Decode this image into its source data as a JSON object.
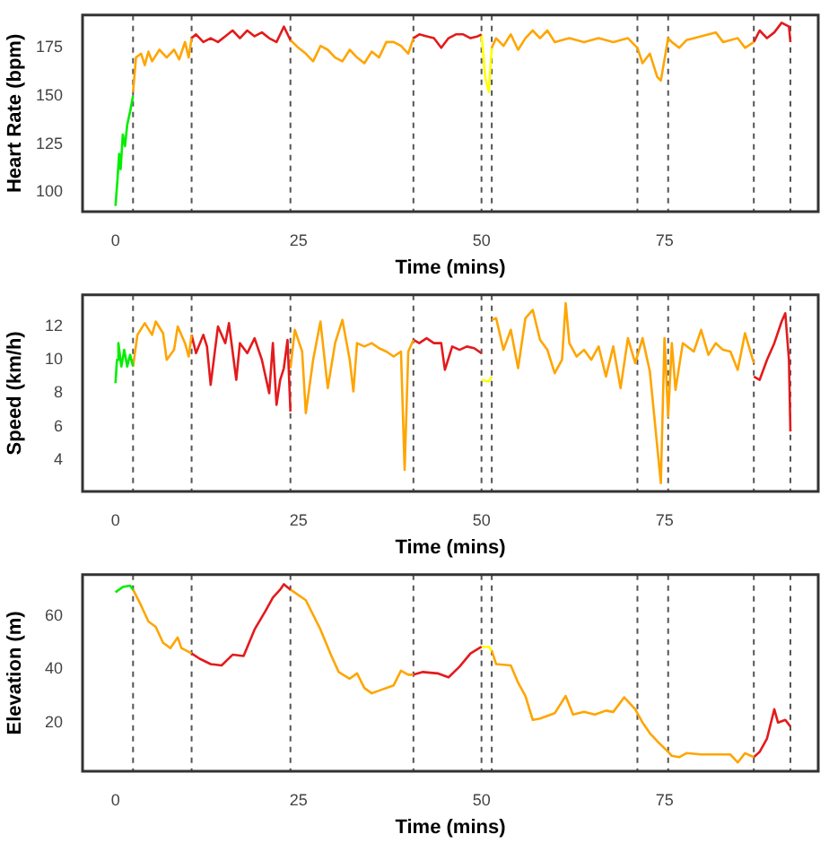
{
  "chart_data": [
    {
      "type": "line",
      "xlabel": "Time (mins)",
      "ylabel": "Heart Rate (bpm)",
      "xlim": [
        -4.5,
        96
      ],
      "xticks": [
        0,
        25,
        50,
        75
      ],
      "ylim": [
        90,
        192
      ],
      "yticks": [
        100,
        125,
        150,
        175
      ],
      "grid": false,
      "legend": false,
      "series": [
        {
          "color": "#00ee00",
          "x": [
            0,
            0.3,
            0.5,
            0.7,
            1,
            1.3,
            1.6,
            2,
            2.4
          ],
          "values": [
            93,
            108,
            120,
            112,
            130,
            124,
            135,
            142,
            150
          ]
        },
        {
          "color": "#ffa500",
          "x": [
            2.4,
            2.8,
            3.5,
            4,
            4.5,
            5,
            6,
            7,
            8,
            8.7,
            9.5,
            10,
            10.4
          ],
          "values": [
            152,
            170,
            172,
            166,
            173,
            168,
            174,
            170,
            174,
            169,
            178,
            170,
            180
          ]
        },
        {
          "color": "#e41a1c",
          "x": [
            10.4,
            11,
            12,
            13,
            14,
            15,
            16,
            17,
            18,
            19,
            20,
            21,
            22,
            23,
            23.9
          ],
          "values": [
            180,
            182,
            178,
            180,
            178,
            181,
            184,
            180,
            184,
            181,
            183,
            180,
            178,
            186,
            179
          ]
        },
        {
          "color": "#ffa500",
          "x": [
            23.9,
            25,
            26,
            27,
            28,
            29,
            30,
            31,
            32,
            33,
            34,
            35,
            36,
            37,
            38,
            39,
            40,
            40.7
          ],
          "values": [
            179,
            175,
            172,
            168,
            176,
            174,
            170,
            168,
            174,
            170,
            167,
            173,
            170,
            178,
            178,
            176,
            172,
            180
          ]
        },
        {
          "color": "#e41a1c",
          "x": [
            40.7,
            41.5,
            42.5,
            43.5,
            44.5,
            45.5,
            46.5,
            47.5,
            48.5,
            49.5,
            50
          ],
          "values": [
            180,
            182,
            181,
            180,
            175,
            180,
            182,
            182,
            180,
            181,
            182
          ]
        },
        {
          "color": "#ffff00",
          "x": [
            50,
            50.5,
            51,
            51.4
          ],
          "values": [
            182,
            160,
            152,
            175
          ]
        },
        {
          "color": "#ffa500",
          "x": [
            51.4,
            52,
            53,
            54,
            55,
            56,
            57,
            58,
            59,
            60,
            62,
            64,
            66,
            68,
            70,
            71.3,
            72,
            73,
            74,
            74.5,
            75.5,
            76,
            77,
            78,
            80,
            82,
            83,
            85,
            86,
            87.2
          ],
          "values": [
            175,
            180,
            176,
            182,
            174,
            180,
            184,
            180,
            184,
            178,
            180,
            178,
            180,
            178,
            180,
            175,
            167,
            172,
            160,
            158,
            180,
            178,
            175,
            179,
            181,
            183,
            178,
            180,
            175,
            178
          ]
        },
        {
          "color": "#e41a1c",
          "x": [
            87.2,
            88,
            89,
            90,
            91,
            92,
            92.2
          ],
          "values": [
            178,
            184,
            180,
            183,
            188,
            186,
            178
          ]
        }
      ],
      "ref_lines": [
        {
          "axis": "x",
          "value": 2.4,
          "color": "#555555",
          "line_style": "dashed"
        },
        {
          "axis": "x",
          "value": 10.4,
          "color": "#555555",
          "line_style": "dashed"
        },
        {
          "axis": "x",
          "value": 23.9,
          "color": "#555555",
          "line_style": "dashed"
        },
        {
          "axis": "x",
          "value": 40.7,
          "color": "#555555",
          "line_style": "dashed"
        },
        {
          "axis": "x",
          "value": 50,
          "color": "#555555",
          "line_style": "dashed"
        },
        {
          "axis": "x",
          "value": 51.4,
          "color": "#555555",
          "line_style": "dashed"
        },
        {
          "axis": "x",
          "value": 71.3,
          "color": "#555555",
          "line_style": "dashed"
        },
        {
          "axis": "x",
          "value": 75.5,
          "color": "#555555",
          "line_style": "dashed"
        },
        {
          "axis": "x",
          "value": 87.2,
          "color": "#555555",
          "line_style": "dashed"
        },
        {
          "axis": "x",
          "value": 92.2,
          "color": "#555555",
          "line_style": "dashed"
        }
      ]
    },
    {
      "type": "line",
      "xlabel": "Time (mins)",
      "ylabel": "Speed (km/h)",
      "xlim": [
        -4.5,
        96
      ],
      "xticks": [
        0,
        25,
        50,
        75
      ],
      "ylim": [
        2.1,
        13.9
      ],
      "yticks": [
        4,
        6,
        8,
        10,
        12
      ],
      "grid": false,
      "legend": false,
      "series": [
        {
          "color": "#00ee00",
          "x": [
            0,
            0.2,
            0.4,
            0.8,
            1.2,
            1.6,
            2,
            2.4
          ],
          "values": [
            8.6,
            10,
            11,
            9.6,
            10.6,
            9.6,
            10.3,
            9.6
          ]
        },
        {
          "color": "#ffa500",
          "x": [
            2.4,
            3,
            4,
            5,
            5.5,
            6.5,
            7,
            8,
            8.5,
            9.5,
            10,
            10.4
          ],
          "values": [
            9.6,
            11.5,
            12.2,
            11.5,
            12.3,
            11.6,
            10,
            10.6,
            12,
            11,
            10.2,
            11.5
          ]
        },
        {
          "color": "#e41a1c",
          "x": [
            10.4,
            11,
            12,
            12.5,
            13,
            14,
            15,
            15.5,
            16,
            16.5,
            17,
            18,
            19,
            20,
            21,
            21.5,
            22,
            22.5,
            23,
            23.5,
            23.9
          ],
          "values": [
            11.5,
            10.4,
            11.5,
            10.8,
            8.5,
            12,
            11,
            12.2,
            10.5,
            8.8,
            11,
            10.4,
            11.3,
            10,
            8,
            11,
            7.3,
            8.8,
            9.5,
            11.2,
            6.9
          ]
        },
        {
          "color": "#ffa500",
          "x": [
            23.9,
            24.5,
            25.5,
            26,
            27,
            28,
            29,
            30,
            31,
            32,
            32.5,
            33,
            34,
            35,
            36,
            37,
            38,
            39,
            39.5,
            40,
            40.7
          ],
          "values": [
            9.5,
            11.8,
            10.5,
            6.8,
            10,
            12.3,
            8.3,
            11,
            12.4,
            10,
            8.1,
            11,
            10.8,
            11,
            10.7,
            10.5,
            10.2,
            10.5,
            3.4,
            10.5,
            11.2
          ]
        },
        {
          "color": "#e41a1c",
          "x": [
            40.7,
            41.5,
            42.5,
            43.5,
            44.5,
            45,
            46,
            47,
            48,
            49,
            50
          ],
          "values": [
            11.2,
            11,
            11.3,
            11,
            11,
            9.4,
            10.8,
            10.6,
            10.8,
            10.7,
            10.4
          ]
        },
        {
          "color": "#ffff00",
          "x": [
            50,
            51,
            51.4
          ],
          "values": [
            8.8,
            8.7,
            9
          ]
        },
        {
          "color": "#ffa500",
          "x": [
            51.4,
            52,
            53,
            54,
            55,
            56,
            57,
            58,
            59,
            60,
            61,
            61.5,
            62,
            63,
            64,
            65,
            66,
            67,
            68,
            69,
            70,
            71,
            72,
            73,
            74.5,
            75,
            75.5,
            76,
            76.5,
            77.5,
            79,
            80,
            81,
            82,
            83,
            84,
            85,
            86,
            87.2
          ],
          "values": [
            12.4,
            12.5,
            10.6,
            11.8,
            9.5,
            12.5,
            13,
            11.2,
            10.6,
            9.2,
            10,
            13.4,
            11,
            10.2,
            10.6,
            10,
            10.8,
            9,
            10.8,
            8.3,
            11.3,
            9.8,
            11.3,
            9.3,
            2.6,
            11.3,
            6.6,
            11,
            8.2,
            11,
            10.5,
            11.8,
            10.3,
            11,
            10.6,
            10.5,
            9.4,
            11.6,
            9.8
          ]
        },
        {
          "color": "#e41a1c",
          "x": [
            87.2,
            88,
            89,
            90,
            91,
            91.5,
            92,
            92.2
          ],
          "values": [
            9,
            8.8,
            10,
            11,
            12.3,
            12.8,
            10,
            5.7
          ]
        }
      ],
      "ref_lines": [
        {
          "axis": "x",
          "value": 2.4,
          "color": "#555555",
          "line_style": "dashed"
        },
        {
          "axis": "x",
          "value": 10.4,
          "color": "#555555",
          "line_style": "dashed"
        },
        {
          "axis": "x",
          "value": 23.9,
          "color": "#555555",
          "line_style": "dashed"
        },
        {
          "axis": "x",
          "value": 40.7,
          "color": "#555555",
          "line_style": "dashed"
        },
        {
          "axis": "x",
          "value": 50,
          "color": "#555555",
          "line_style": "dashed"
        },
        {
          "axis": "x",
          "value": 51.4,
          "color": "#555555",
          "line_style": "dashed"
        },
        {
          "axis": "x",
          "value": 71.3,
          "color": "#555555",
          "line_style": "dashed"
        },
        {
          "axis": "x",
          "value": 75.5,
          "color": "#555555",
          "line_style": "dashed"
        },
        {
          "axis": "x",
          "value": 87.2,
          "color": "#555555",
          "line_style": "dashed"
        },
        {
          "axis": "x",
          "value": 92.2,
          "color": "#555555",
          "line_style": "dashed"
        }
      ]
    },
    {
      "type": "line",
      "xlabel": "Time (mins)",
      "ylabel": "Elevation (m)",
      "xlim": [
        -4.5,
        96
      ],
      "xticks": [
        0,
        25,
        50,
        75
      ],
      "ylim": [
        1.7,
        75.6
      ],
      "yticks": [
        20,
        40,
        60
      ],
      "grid": false,
      "legend": false,
      "series": [
        {
          "color": "#00ee00",
          "x": [
            0,
            1,
            2,
            2.4
          ],
          "values": [
            69,
            71,
            71.5,
            70
          ]
        },
        {
          "color": "#ffa500",
          "x": [
            2.4,
            3.5,
            4.5,
            5.5,
            6.5,
            7.5,
            8.5,
            9,
            10.4
          ],
          "values": [
            70,
            64,
            58,
            56,
            50,
            48,
            52,
            48,
            46
          ]
        },
        {
          "color": "#e41a1c",
          "x": [
            10.4,
            11.5,
            13,
            14.5,
            16,
            17.5,
            19,
            20.5,
            21.5,
            22.5,
            23,
            23.9
          ],
          "values": [
            46,
            44,
            42,
            41.5,
            45.5,
            45,
            55,
            62,
            67,
            70,
            72,
            70
          ]
        },
        {
          "color": "#ffa500",
          "x": [
            23.9,
            26,
            28,
            29.5,
            30.5,
            32,
            33,
            34,
            35,
            36,
            38,
            39,
            40,
            40.7
          ],
          "values": [
            70,
            66,
            55,
            45,
            39,
            36.5,
            38.5,
            33,
            31,
            32,
            34,
            39.5,
            38,
            38
          ]
        },
        {
          "color": "#e41a1c",
          "x": [
            40.7,
            42,
            44,
            45.5,
            47,
            48.5,
            50
          ],
          "values": [
            38,
            39,
            38.5,
            37,
            41,
            46,
            48.5
          ]
        },
        {
          "color": "#ffff00",
          "x": [
            50,
            51,
            51.4
          ],
          "values": [
            48.5,
            48.5,
            47
          ]
        },
        {
          "color": "#ffa500",
          "x": [
            51.4,
            52,
            54,
            55,
            56,
            57,
            58,
            60,
            61.5,
            62.5,
            64,
            65.5,
            67,
            68,
            69.5,
            71,
            72,
            73,
            74,
            75.5,
            76,
            77,
            78,
            80,
            82,
            84,
            85,
            86,
            87.2
          ],
          "values": [
            47,
            42,
            41.5,
            35,
            30,
            21,
            21.5,
            23.5,
            30,
            23,
            24,
            23,
            24.5,
            24,
            29.5,
            25,
            20,
            16,
            13,
            9,
            7.5,
            7,
            8.5,
            8,
            8,
            8,
            5,
            8.5,
            7
          ]
        },
        {
          "color": "#e41a1c",
          "x": [
            87.2,
            88,
            89,
            90,
            90.5,
            91.5,
            92.2
          ],
          "values": [
            7,
            9,
            14,
            25,
            20,
            21,
            18.5
          ]
        }
      ],
      "ref_lines": [
        {
          "axis": "x",
          "value": 2.4,
          "color": "#555555",
          "line_style": "dashed"
        },
        {
          "axis": "x",
          "value": 10.4,
          "color": "#555555",
          "line_style": "dashed"
        },
        {
          "axis": "x",
          "value": 23.9,
          "color": "#555555",
          "line_style": "dashed"
        },
        {
          "axis": "x",
          "value": 40.7,
          "color": "#555555",
          "line_style": "dashed"
        },
        {
          "axis": "x",
          "value": 50,
          "color": "#555555",
          "line_style": "dashed"
        },
        {
          "axis": "x",
          "value": 51.4,
          "color": "#555555",
          "line_style": "dashed"
        },
        {
          "axis": "x",
          "value": 71.3,
          "color": "#555555",
          "line_style": "dashed"
        },
        {
          "axis": "x",
          "value": 75.5,
          "color": "#555555",
          "line_style": "dashed"
        },
        {
          "axis": "x",
          "value": 87.2,
          "color": "#555555",
          "line_style": "dashed"
        },
        {
          "axis": "x",
          "value": 92.2,
          "color": "#555555",
          "line_style": "dashed"
        }
      ]
    }
  ]
}
